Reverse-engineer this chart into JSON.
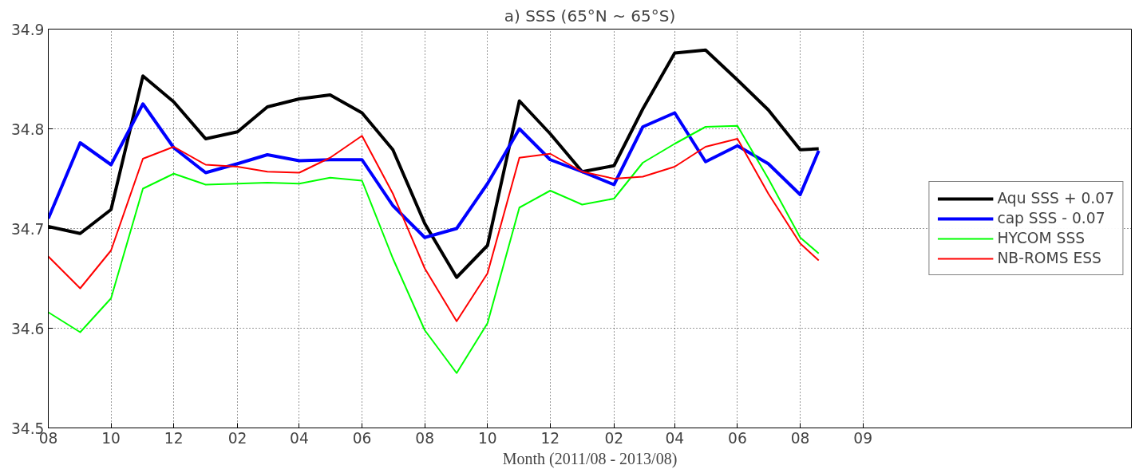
{
  "chart_data": {
    "type": "line",
    "title": "a) SSS (65°N ~ 65°S)",
    "xlabel": "Month (2011/08 - 2013/08)",
    "x": [
      "2011-08",
      "2011-09",
      "2011-10",
      "2011-11",
      "2011-12",
      "2012-01",
      "2012-02",
      "2012-03",
      "2012-04",
      "2012-05",
      "2012-06",
      "2012-07",
      "2012-08",
      "2012-09",
      "2012-10",
      "2012-11",
      "2012-12",
      "2013-01",
      "2013-02",
      "2013-03",
      "2013-04",
      "2013-05",
      "2013-06",
      "2013-07",
      "2013-08",
      "2013-08-19"
    ],
    "xlim": [
      "2011-08",
      "2014-06-19"
    ],
    "xticks": [
      {
        "value": "2011-08",
        "label": "08"
      },
      {
        "value": "2011-10",
        "label": "10"
      },
      {
        "value": "2011-12",
        "label": "12"
      },
      {
        "value": "2012-02",
        "label": "02"
      },
      {
        "value": "2012-04",
        "label": "04"
      },
      {
        "value": "2012-06",
        "label": "06"
      },
      {
        "value": "2012-08",
        "label": "08"
      },
      {
        "value": "2012-10",
        "label": "10"
      },
      {
        "value": "2012-12",
        "label": "12"
      },
      {
        "value": "2013-02",
        "label": "02"
      },
      {
        "value": "2013-04",
        "label": "04"
      },
      {
        "value": "2013-06",
        "label": "06"
      },
      {
        "value": "2013-08",
        "label": "08"
      },
      {
        "value": "2013-10",
        "label": "09"
      }
    ],
    "ylim": [
      34.5,
      34.9
    ],
    "yticks": [
      34.5,
      34.6,
      34.7,
      34.8,
      34.9
    ],
    "grid": true,
    "legend": "right",
    "line_style": "solid",
    "marker": "none",
    "series": [
      {
        "name": "Aqu SSS + 0.07",
        "color": "#000000",
        "values": [
          34.702,
          34.695,
          34.719,
          34.853,
          34.827,
          34.79,
          34.797,
          34.822,
          34.83,
          34.834,
          34.816,
          34.779,
          34.705,
          34.651,
          34.683,
          34.828,
          34.795,
          34.757,
          34.763,
          34.82,
          34.876,
          34.879,
          34.849,
          34.819,
          34.779,
          34.78
        ]
      },
      {
        "name": "cap SSS - 0.07",
        "color": "#0000ff",
        "values": [
          34.71,
          34.786,
          34.764,
          34.825,
          34.781,
          34.756,
          34.765,
          34.774,
          34.768,
          34.769,
          34.769,
          34.723,
          34.691,
          34.7,
          34.745,
          34.8,
          34.769,
          34.757,
          34.744,
          34.802,
          34.816,
          34.767,
          34.783,
          34.765,
          34.734,
          34.778
        ]
      },
      {
        "name": "HYCOM SSS",
        "color": "#00ff00",
        "values": [
          34.616,
          34.596,
          34.63,
          34.74,
          34.755,
          34.744,
          34.745,
          34.746,
          34.745,
          34.751,
          34.748,
          34.67,
          34.598,
          34.555,
          34.605,
          34.721,
          34.738,
          34.724,
          34.73,
          34.766,
          34.785,
          34.802,
          34.803,
          34.75,
          34.691,
          34.675
        ]
      },
      {
        "name": "NB-ROMS ESS",
        "color": "#ff0000",
        "values": [
          34.672,
          34.64,
          34.678,
          34.77,
          34.782,
          34.764,
          34.762,
          34.757,
          34.756,
          34.771,
          34.793,
          34.735,
          34.66,
          34.607,
          34.655,
          34.771,
          34.775,
          34.757,
          34.75,
          34.752,
          34.762,
          34.782,
          34.79,
          34.735,
          34.685,
          34.668
        ]
      }
    ]
  }
}
